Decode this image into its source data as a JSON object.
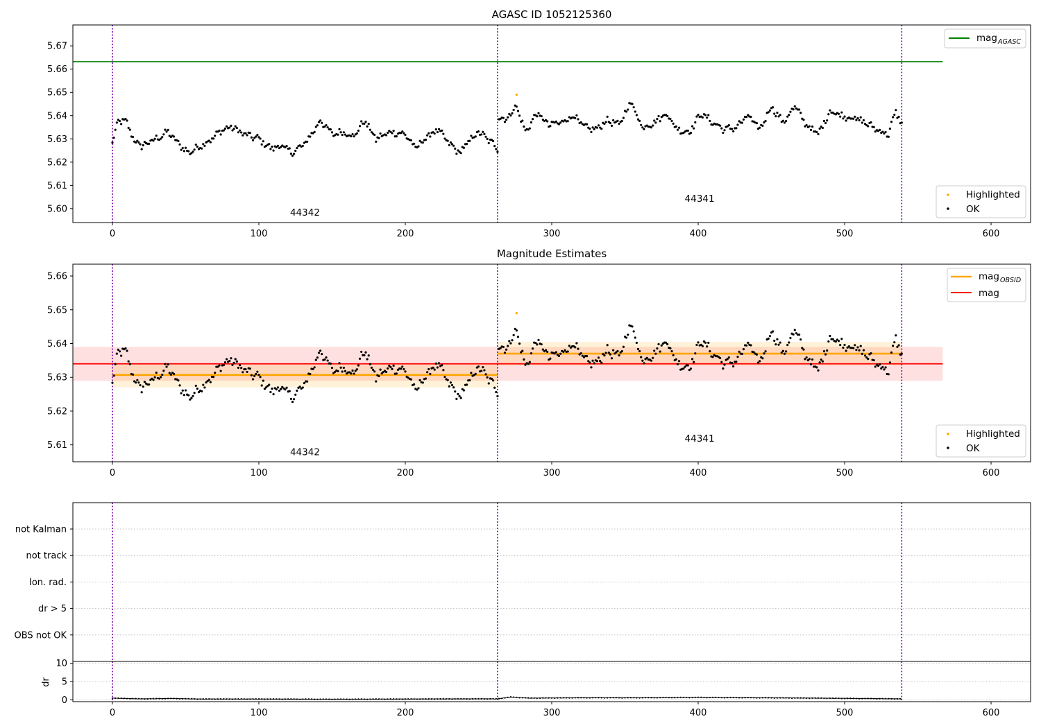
{
  "chart_data": [
    {
      "type": "scatter",
      "title": "AGASC ID 1052125360",
      "xlim": [
        -27,
        627
      ],
      "ylim": [
        5.594,
        5.679
      ],
      "xticks": [
        0,
        100,
        200,
        300,
        400,
        500,
        600
      ],
      "yticks": [
        5.6,
        5.61,
        5.62,
        5.63,
        5.64,
        5.65,
        5.66,
        5.67
      ],
      "series": [
        {
          "name": "mag",
          "name_subscript": "AGASC",
          "kind": "hline",
          "value": 5.6632,
          "x_range": [
            -27,
            567
          ],
          "color": "#008000"
        },
        {
          "name": "Highlighted",
          "kind": "points",
          "color": "#ffa500",
          "x": [
            276
          ],
          "y": [
            5.649
          ]
        },
        {
          "name": "OK",
          "kind": "points",
          "color": "#000000",
          "segments": [
            {
              "x_range": [
                0,
                263
              ],
              "anchors": [
                [
                  0,
                  5.628
                ],
                [
                  4,
                  5.638
                ],
                [
                  10,
                  5.637
                ],
                [
                  15,
                  5.629
                ],
                [
                  20,
                  5.627
                ],
                [
                  30,
                  5.63
                ],
                [
                  38,
                  5.633
                ],
                [
                  45,
                  5.628
                ],
                [
                  52,
                  5.624
                ],
                [
                  60,
                  5.627
                ],
                [
                  68,
                  5.63
                ],
                [
                  75,
                  5.634
                ],
                [
                  82,
                  5.635
                ],
                [
                  90,
                  5.632
                ],
                [
                  100,
                  5.63
                ],
                [
                  108,
                  5.626
                ],
                [
                  116,
                  5.627
                ],
                [
                  122,
                  5.624
                ],
                [
                  130,
                  5.627
                ],
                [
                  136,
                  5.632
                ],
                [
                  142,
                  5.638
                ],
                [
                  150,
                  5.632
                ],
                [
                  158,
                  5.633
                ],
                [
                  165,
                  5.631
                ],
                [
                  172,
                  5.638
                ],
                [
                  180,
                  5.63
                ],
                [
                  190,
                  5.633
                ],
                [
                  200,
                  5.632
                ],
                [
                  207,
                  5.626
                ],
                [
                  215,
                  5.631
                ],
                [
                  222,
                  5.634
                ],
                [
                  230,
                  5.628
                ],
                [
                  237,
                  5.624
                ],
                [
                  245,
                  5.63
                ],
                [
                  250,
                  5.633
                ],
                [
                  258,
                  5.629
                ],
                [
                  263,
                  5.626
                ]
              ]
            },
            {
              "x_range": [
                263,
                539
              ],
              "anchors": [
                [
                  263,
                  5.64
                ],
                [
                  268,
                  5.638
                ],
                [
                  276,
                  5.644
                ],
                [
                  282,
                  5.633
                ],
                [
                  290,
                  5.641
                ],
                [
                  298,
                  5.636
                ],
                [
                  306,
                  5.637
                ],
                [
                  315,
                  5.64
                ],
                [
                  322,
                  5.635
                ],
                [
                  330,
                  5.634
                ],
                [
                  338,
                  5.638
                ],
                [
                  346,
                  5.636
                ],
                [
                  354,
                  5.646
                ],
                [
                  362,
                  5.635
                ],
                [
                  370,
                  5.637
                ],
                [
                  378,
                  5.641
                ],
                [
                  386,
                  5.634
                ],
                [
                  394,
                  5.633
                ],
                [
                  402,
                  5.641
                ],
                [
                  410,
                  5.637
                ],
                [
                  418,
                  5.634
                ],
                [
                  426,
                  5.635
                ],
                [
                  434,
                  5.64
                ],
                [
                  442,
                  5.634
                ],
                [
                  450,
                  5.644
                ],
                [
                  458,
                  5.637
                ],
                [
                  466,
                  5.644
                ],
                [
                  474,
                  5.636
                ],
                [
                  482,
                  5.632
                ],
                [
                  490,
                  5.642
                ],
                [
                  498,
                  5.64
                ],
                [
                  506,
                  5.639
                ],
                [
                  514,
                  5.637
                ],
                [
                  522,
                  5.634
                ],
                [
                  530,
                  5.632
                ],
                [
                  535,
                  5.642
                ],
                [
                  539,
                  5.636
                ]
              ]
            }
          ]
        }
      ],
      "observations": [
        {
          "label": "44342",
          "x": 131.5,
          "y": 5.597
        },
        {
          "label": "44341",
          "x": 401,
          "y": 5.603
        }
      ],
      "obs_boundaries": [
        0,
        263,
        539
      ],
      "legend_top": "upper right",
      "legend_bottom": "lower right",
      "grid": false
    },
    {
      "type": "scatter",
      "title": "Magnitude Estimates",
      "xlim": [
        -27,
        627
      ],
      "ylim": [
        5.605,
        5.6635
      ],
      "xticks": [
        0,
        100,
        200,
        300,
        400,
        500,
        600
      ],
      "yticks": [
        5.61,
        5.62,
        5.63,
        5.64,
        5.65,
        5.66
      ],
      "series": [
        {
          "name": "mag",
          "name_subscript": "OBSID",
          "kind": "steps",
          "color": "#ffa500",
          "steps": [
            {
              "x": [
                0,
                263
              ],
              "y": 5.6307,
              "band": [
                5.627,
                5.634
              ]
            },
            {
              "x": [
                263,
                539
              ],
              "y": 5.637,
              "band": [
                5.6335,
                5.6405
              ]
            }
          ]
        },
        {
          "name": "mag",
          "kind": "hline",
          "value": 5.634,
          "band": [
            5.629,
            5.639
          ],
          "x_range": [
            -27,
            567
          ],
          "color": "#ff0000"
        },
        {
          "name": "Highlighted",
          "kind": "points",
          "color": "#ffa500",
          "x": [
            276
          ],
          "y": [
            5.649
          ]
        },
        {
          "name": "OK",
          "kind": "points",
          "color": "#000000",
          "same_as_panel": 0
        }
      ],
      "observations": [
        {
          "label": "44342",
          "x": 131.5,
          "y": 5.607
        },
        {
          "label": "44341",
          "x": 401,
          "y": 5.611
        }
      ],
      "obs_boundaries": [
        0,
        263,
        539
      ],
      "legend_top": "upper right",
      "legend_bottom": "lower right",
      "grid": false
    },
    {
      "type": "table",
      "title": "",
      "categories": [
        "not Kalman",
        "not track",
        "Ion. rad.",
        "dr > 5",
        "OBS not OK"
      ],
      "flagged_points": [],
      "grid": true,
      "obs_boundaries": [
        0,
        263,
        539
      ]
    },
    {
      "type": "line",
      "ylabel": "dr",
      "xlim": [
        -27,
        627
      ],
      "ylim": [
        -0.5,
        10.5
      ],
      "xticks": [
        0,
        100,
        200,
        300,
        400,
        500,
        600
      ],
      "yticks": [
        0,
        5,
        10
      ],
      "series": [
        {
          "name": "dr",
          "color": "#000000",
          "anchors": [
            [
              0,
              0.4
            ],
            [
              20,
              0.2
            ],
            [
              40,
              0.3
            ],
            [
              60,
              0.15
            ],
            [
              100,
              0.15
            ],
            [
              150,
              0.1
            ],
            [
              200,
              0.15
            ],
            [
              250,
              0.2
            ],
            [
              263,
              0.2
            ],
            [
              272,
              0.7
            ],
            [
              285,
              0.4
            ],
            [
              320,
              0.5
            ],
            [
              360,
              0.5
            ],
            [
              400,
              0.6
            ],
            [
              440,
              0.5
            ],
            [
              480,
              0.4
            ],
            [
              510,
              0.3
            ],
            [
              539,
              0.2
            ]
          ]
        }
      ],
      "obs_boundaries": [
        0,
        263,
        539
      ],
      "grid": true
    }
  ]
}
